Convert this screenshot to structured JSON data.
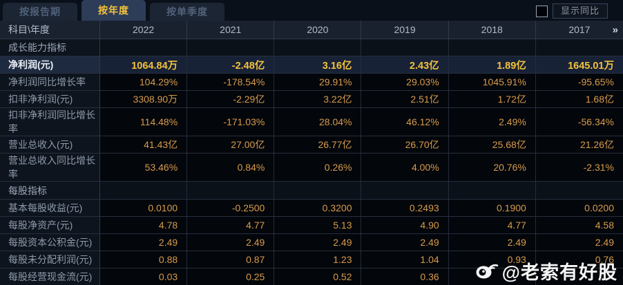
{
  "tabs": [
    {
      "label": "按报告期",
      "active": false
    },
    {
      "label": "按年度",
      "active": true
    },
    {
      "label": "按单季度",
      "active": false
    }
  ],
  "yoy_control": {
    "label": "显示同比",
    "checked": false
  },
  "table": {
    "corner_label": "科目\\年度",
    "years": [
      "2022",
      "2021",
      "2020",
      "2019",
      "2018",
      "2017"
    ],
    "more_years_glyph": "»",
    "rows": [
      {
        "type": "section",
        "label": "成长能力指标",
        "values": [
          "",
          "",
          "",
          "",
          "",
          ""
        ]
      },
      {
        "type": "data",
        "highlight": true,
        "label": "净利润(元)",
        "values": [
          "1064.84万",
          "-2.48亿",
          "3.16亿",
          "2.43亿",
          "1.89亿",
          "1645.01万"
        ]
      },
      {
        "type": "data",
        "label": "净利润同比增长率",
        "values": [
          "104.29%",
          "-178.54%",
          "29.91%",
          "29.03%",
          "1045.91%",
          "-95.65%"
        ]
      },
      {
        "type": "data",
        "label": "扣非净利润(元)",
        "values": [
          "3308.90万",
          "-2.29亿",
          "3.22亿",
          "2.51亿",
          "1.72亿",
          "1.68亿"
        ]
      },
      {
        "type": "data",
        "label": "扣非净利润同比增长率",
        "values": [
          "114.48%",
          "-171.03%",
          "28.04%",
          "46.12%",
          "2.49%",
          "-56.34%"
        ]
      },
      {
        "type": "data",
        "label": "营业总收入(元)",
        "values": [
          "41.43亿",
          "27.00亿",
          "26.77亿",
          "26.70亿",
          "25.68亿",
          "21.26亿"
        ]
      },
      {
        "type": "data",
        "label": "营业总收入同比增长率",
        "values": [
          "53.46%",
          "0.84%",
          "0.26%",
          "4.00%",
          "20.76%",
          "-2.31%"
        ]
      },
      {
        "type": "section",
        "label": "每股指标",
        "values": [
          "",
          "",
          "",
          "",
          "",
          ""
        ]
      },
      {
        "type": "data",
        "label": "基本每股收益(元)",
        "values": [
          "0.0100",
          "-0.2500",
          "0.3200",
          "0.2493",
          "0.1900",
          "0.0200"
        ]
      },
      {
        "type": "data",
        "label": "每股净资产(元)",
        "values": [
          "4.78",
          "4.77",
          "5.13",
          "4.90",
          "4.77",
          "4.58"
        ]
      },
      {
        "type": "data",
        "label": "每股资本公积金(元)",
        "values": [
          "2.49",
          "2.49",
          "2.49",
          "2.49",
          "2.49",
          "2.49"
        ]
      },
      {
        "type": "data",
        "label": "每股未分配利润(元)",
        "values": [
          "0.88",
          "0.87",
          "1.23",
          "1.04",
          "0.93",
          "0.76"
        ]
      },
      {
        "type": "data",
        "label": "每股经营现金流(元)",
        "values": [
          "0.03",
          "0.25",
          "0.52",
          "0.36",
          "",
          ""
        ]
      }
    ]
  },
  "watermark": {
    "text": "@老索有好股",
    "icon": "weibo-icon"
  },
  "colors": {
    "accent_gold": "#f6c33c",
    "value_orange": "#d89c4d",
    "highlight_row_bg": "#182236",
    "header_bg": "#19212f",
    "label_col_bg": "#0e141d",
    "active_tab_bg": "#2d3d58",
    "page_bg": "#05080d"
  }
}
